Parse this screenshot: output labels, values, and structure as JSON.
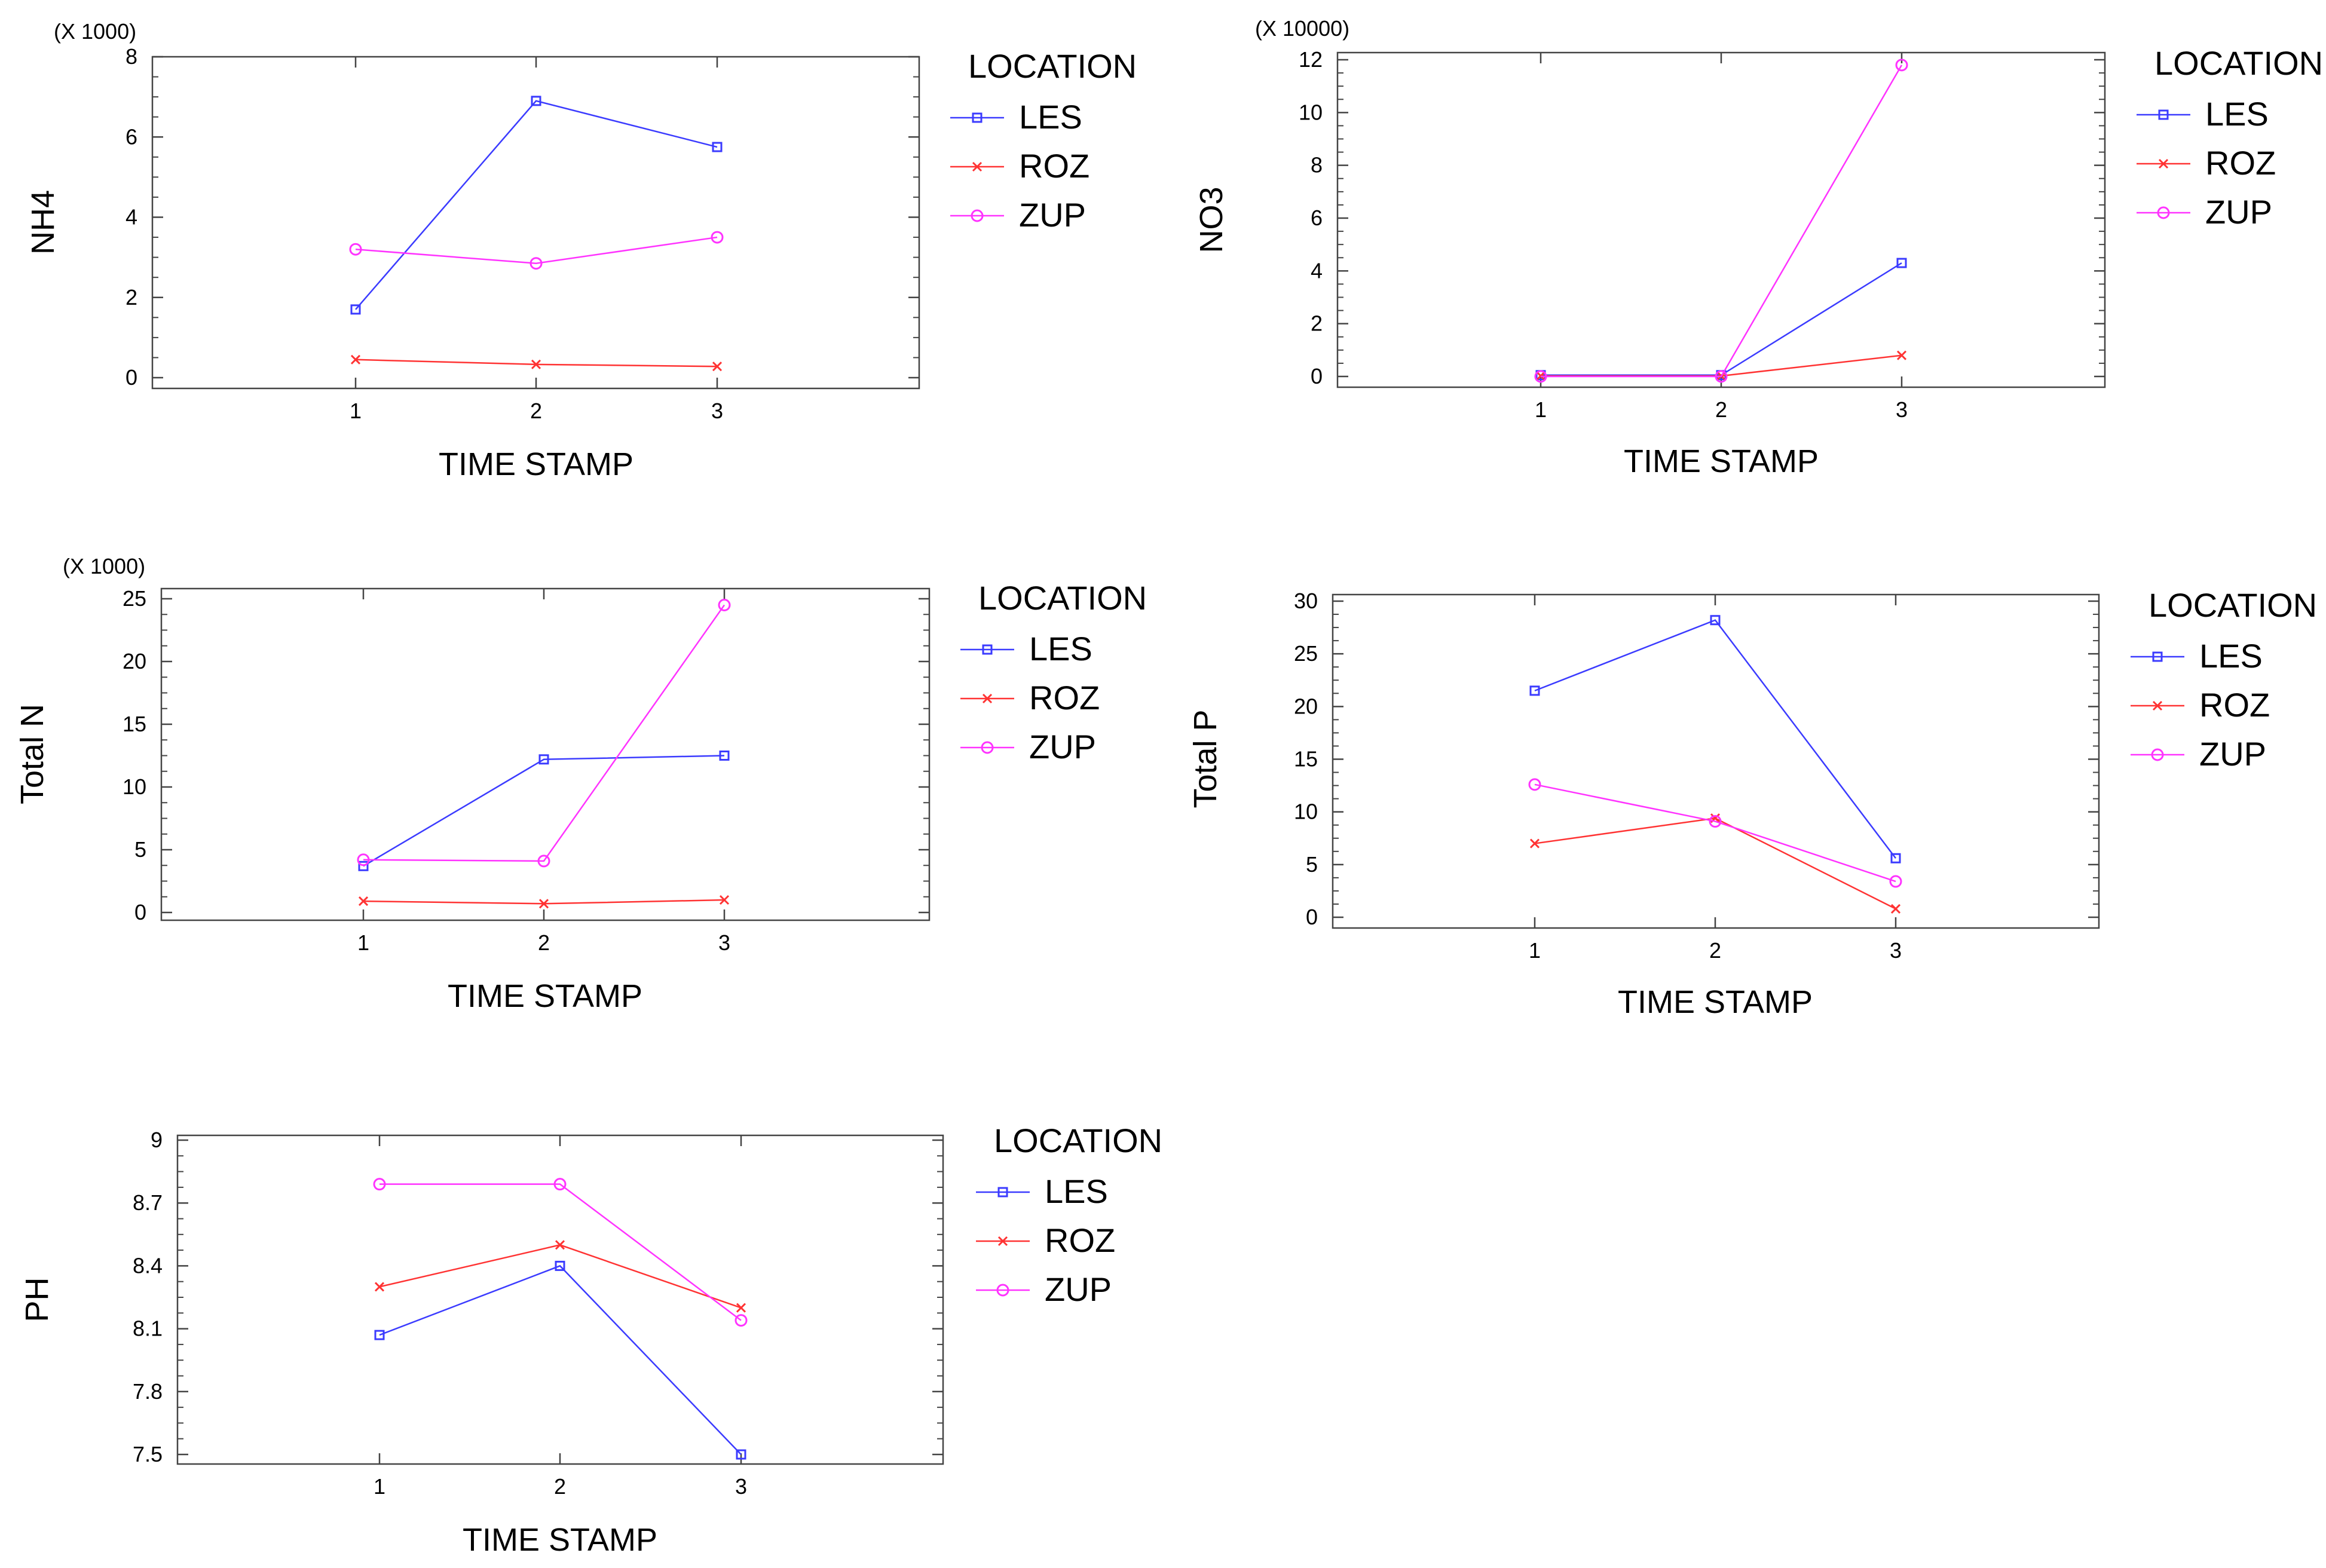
{
  "colors": {
    "LES": "#3b3bff",
    "ROZ": "#ff3333",
    "ZUP": "#ff33ff",
    "axis": "#444444"
  },
  "chart_data": [
    {
      "type": "line",
      "ylabel": "NH4",
      "xlabel": "TIME STAMP",
      "scale_note": "(X 1000)",
      "categories": [
        "1",
        "2",
        "3"
      ],
      "ylim": [
        0,
        8
      ],
      "yticks": [
        "0",
        "2",
        "4",
        "6",
        "8"
      ],
      "legend_title": "LOCATION",
      "series": [
        {
          "name": "LES",
          "values": [
            1.7,
            6.9,
            5.75
          ]
        },
        {
          "name": "ROZ",
          "values": [
            0.45,
            0.33,
            0.28
          ]
        },
        {
          "name": "ZUP",
          "values": [
            3.2,
            2.85,
            3.5
          ]
        }
      ]
    },
    {
      "type": "line",
      "ylabel": "NO3",
      "xlabel": "TIME STAMP",
      "scale_note": "(X 10000)",
      "categories": [
        "1",
        "2",
        "3"
      ],
      "ylim": [
        0,
        12
      ],
      "yticks": [
        "0",
        "2",
        "4",
        "6",
        "8",
        "10",
        "12"
      ],
      "legend_title": "LOCATION",
      "series": [
        {
          "name": "LES",
          "values": [
            0.05,
            0.05,
            4.3
          ]
        },
        {
          "name": "ROZ",
          "values": [
            0.02,
            0.02,
            0.8
          ]
        },
        {
          "name": "ZUP",
          "values": [
            0.0,
            0.0,
            11.8
          ]
        }
      ]
    },
    {
      "type": "line",
      "ylabel": "Total N",
      "xlabel": "TIME STAMP",
      "scale_note": "(X 1000)",
      "categories": [
        "1",
        "2",
        "3"
      ],
      "ylim": [
        0,
        25
      ],
      "yticks": [
        "0",
        "5",
        "10",
        "15",
        "20",
        "25"
      ],
      "legend_title": "LOCATION",
      "series": [
        {
          "name": "LES",
          "values": [
            3.7,
            12.2,
            12.5
          ]
        },
        {
          "name": "ROZ",
          "values": [
            0.9,
            0.7,
            1.0
          ]
        },
        {
          "name": "ZUP",
          "values": [
            4.2,
            4.1,
            24.5
          ]
        }
      ]
    },
    {
      "type": "line",
      "ylabel": "Total P",
      "xlabel": "TIME STAMP",
      "scale_note": "",
      "categories": [
        "1",
        "2",
        "3"
      ],
      "ylim": [
        0,
        30
      ],
      "yticks": [
        "0",
        "5",
        "10",
        "15",
        "20",
        "25",
        "30"
      ],
      "legend_title": "LOCATION",
      "series": [
        {
          "name": "LES",
          "values": [
            21.5,
            28.2,
            5.6
          ]
        },
        {
          "name": "ROZ",
          "values": [
            7.0,
            9.4,
            0.8
          ]
        },
        {
          "name": "ZUP",
          "values": [
            12.6,
            9.1,
            3.4
          ]
        }
      ]
    },
    {
      "type": "line",
      "ylabel": "PH",
      "xlabel": "TIME STAMP",
      "scale_note": "",
      "categories": [
        "1",
        "2",
        "3"
      ],
      "ylim": [
        7.5,
        9
      ],
      "yticks": [
        "7.5",
        "7.8",
        "8.1",
        "8.4",
        "8.7",
        "9"
      ],
      "legend_title": "LOCATION",
      "series": [
        {
          "name": "LES",
          "values": [
            8.07,
            8.4,
            7.5
          ]
        },
        {
          "name": "ROZ",
          "values": [
            8.3,
            8.5,
            8.2
          ]
        },
        {
          "name": "ZUP",
          "values": [
            8.79,
            8.79,
            8.14
          ]
        }
      ]
    }
  ]
}
